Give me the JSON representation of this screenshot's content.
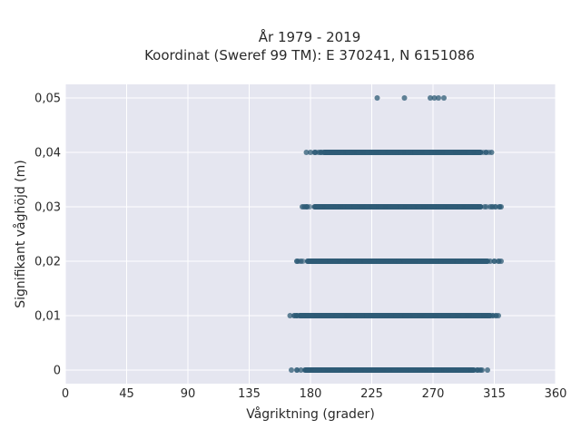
{
  "chart_data": {
    "type": "scatter",
    "title": "År 1979 - 2019",
    "subtitle": "Koordinat (Sweref 99 TM): E 370241, N 6151086",
    "xlabel": "Vågriktning (grader)",
    "ylabel": "Signifikant våghöjd (m)",
    "xlim": [
      0,
      360
    ],
    "ylim": [
      -0.0025,
      0.0525
    ],
    "x_ticks": [
      0,
      45,
      90,
      135,
      180,
      225,
      270,
      315,
      360
    ],
    "x_tick_labels": [
      "0",
      "45",
      "90",
      "135",
      "180",
      "225",
      "270",
      "315",
      "360"
    ],
    "y_ticks": [
      0,
      0.01,
      0.02,
      0.03,
      0.04,
      0.05
    ],
    "y_tick_labels": [
      "0",
      "0,01",
      "0,02",
      "0,03",
      "0,04",
      "0,05"
    ],
    "grid": true,
    "marker_color": "#2e5b76",
    "bands": [
      {
        "y": 0.05,
        "scattered_x": [
          229,
          249,
          268,
          271,
          274,
          278
        ]
      },
      {
        "y": 0.04,
        "x_range": [
          177,
          313
        ],
        "dense_range": [
          190,
          305
        ],
        "scattered_x": [
          177,
          180,
          183,
          186,
          309,
          313
        ]
      },
      {
        "y": 0.03,
        "x_range": [
          174,
          320
        ],
        "dense_range": [
          183,
          305
        ],
        "scattered_x": [
          174,
          176,
          308,
          312,
          316,
          319,
          320
        ]
      },
      {
        "y": 0.02,
        "x_range": [
          170,
          320
        ],
        "dense_range": [
          178,
          310
        ],
        "scattered_x": [
          170,
          173,
          312,
          315,
          318,
          320
        ]
      },
      {
        "y": 0.01,
        "x_range": [
          165,
          318
        ],
        "dense_range": [
          172,
          312
        ],
        "scattered_x": [
          165,
          168,
          170,
          314,
          316,
          318
        ]
      },
      {
        "y": 0,
        "x_range": [
          166,
          310
        ],
        "dense_range": [
          176,
          300
        ],
        "scattered_x": [
          166,
          170,
          173,
          303,
          306,
          310
        ]
      }
    ]
  }
}
